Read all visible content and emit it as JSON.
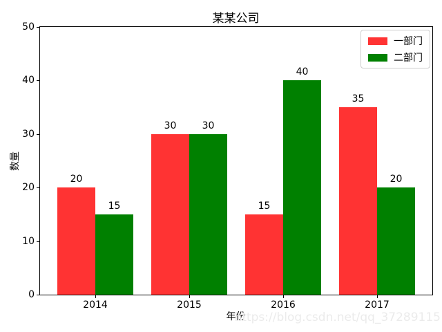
{
  "watermark_text": "https://blog.csdn.net/qq_37289115",
  "colors": {
    "series_red": "#ff3333",
    "series_green": "#008000",
    "axis": "#000000",
    "legend_border": "#cccccc",
    "watermark": "#ebebeb",
    "background": "#ffffff"
  },
  "chart_data": {
    "type": "bar",
    "title": "某某公司",
    "xlabel": "年份",
    "ylabel": "数量",
    "categories": [
      "2014",
      "2015",
      "2016",
      "2017"
    ],
    "series": [
      {
        "name": "一部门",
        "color": "#ff3333",
        "values": [
          20,
          30,
          15,
          35
        ]
      },
      {
        "name": "二部门",
        "color": "#008000",
        "values": [
          15,
          30,
          40,
          20
        ]
      }
    ],
    "ylim": [
      0,
      50
    ],
    "yticks": [
      0,
      10,
      20,
      30,
      40,
      50
    ],
    "bar_value_labels": [
      [
        20,
        30,
        15,
        35
      ],
      [
        15,
        30,
        40,
        20
      ]
    ],
    "legend_position": "upper right",
    "grid": false
  }
}
